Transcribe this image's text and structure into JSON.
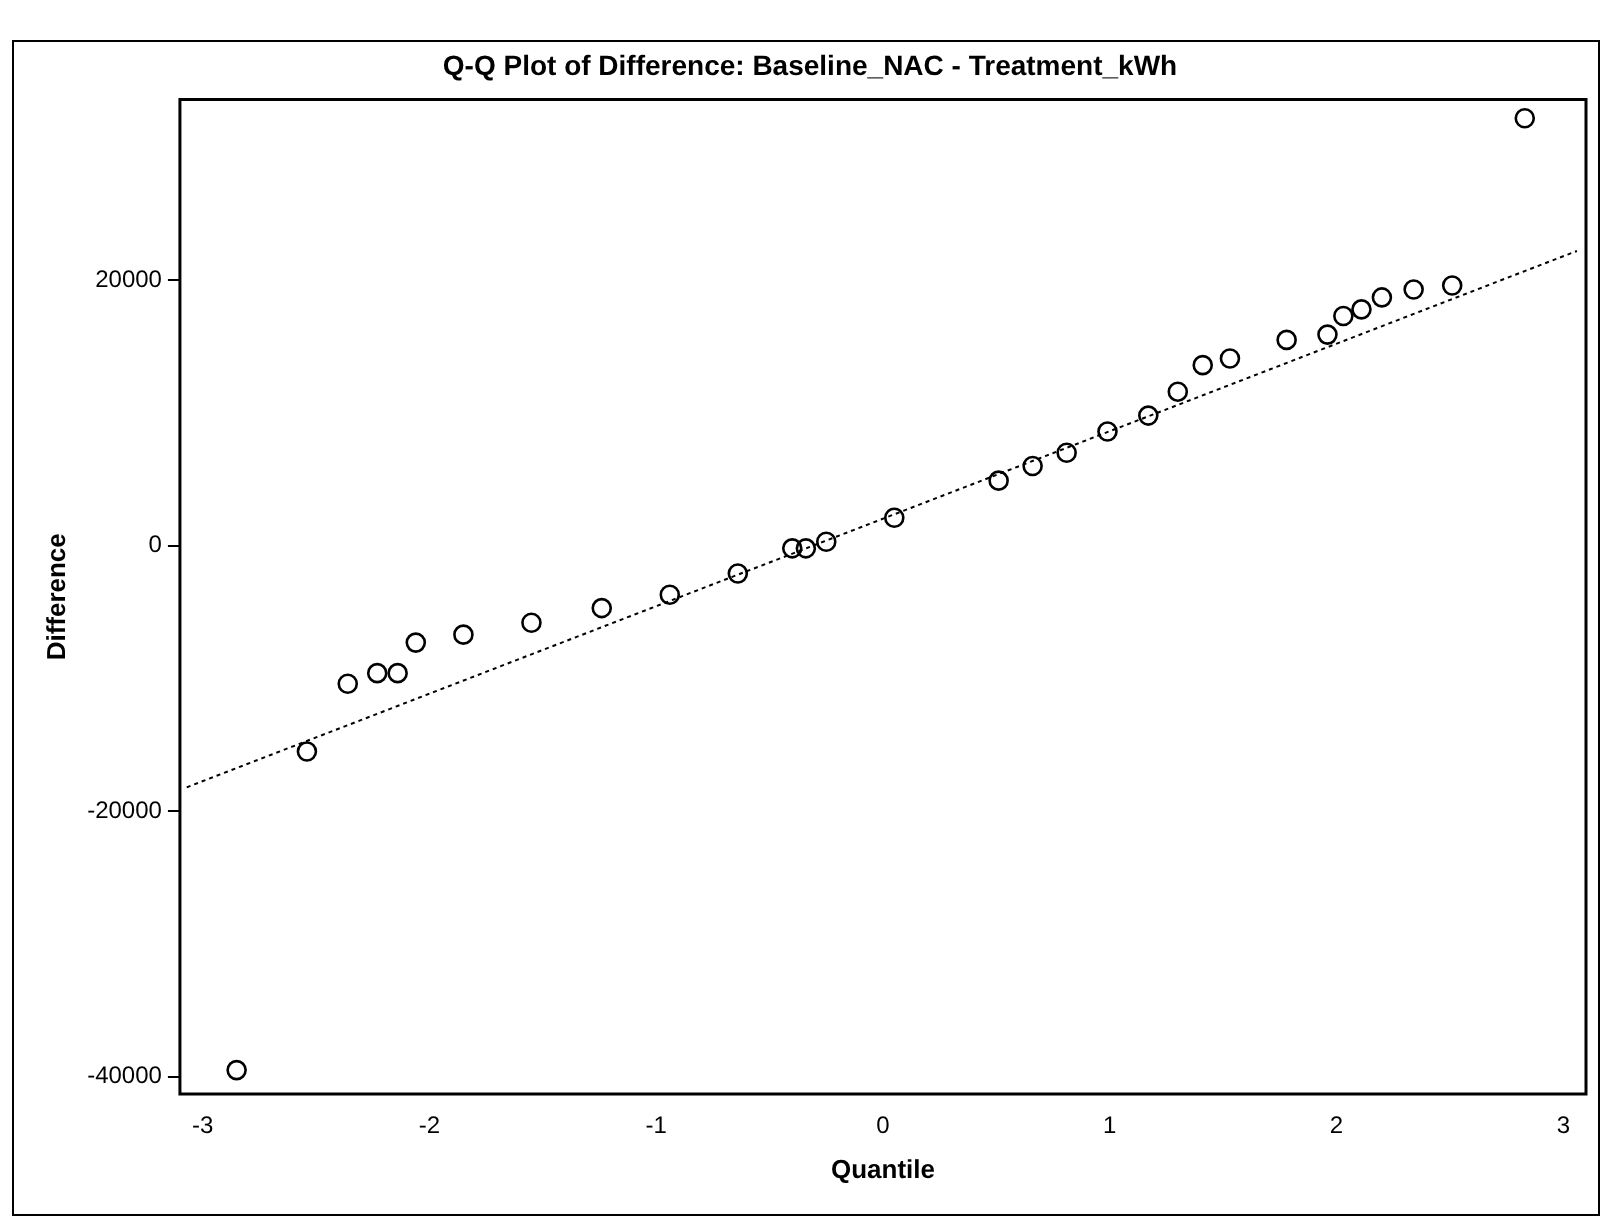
{
  "chart_data": {
    "type": "scatter",
    "title": "Q-Q Plot of Difference: Baseline_NAC - Treatment_kWh",
    "xlabel": "Quantile",
    "ylabel": "Difference",
    "xlim": [
      -3.1,
      3.1
    ],
    "xticks": [
      -3,
      -2,
      -1,
      0,
      1,
      2,
      3
    ],
    "ylim": [
      -41300,
      33600
    ],
    "yticks": [
      -40000,
      -20000,
      0,
      20000
    ],
    "grid": false,
    "legend": false,
    "series": [
      {
        "type": "scatter",
        "color": "#000000",
        "marker": "circle",
        "x": [
          -2.85,
          -2.54,
          -2.36,
          -2.23,
          -2.14,
          -2.06,
          -1.85,
          -1.55,
          -1.24,
          -0.94,
          -0.64,
          -0.4,
          -0.34,
          -0.25,
          0.05,
          0.51,
          0.66,
          0.81,
          0.99,
          1.17,
          1.3,
          1.41,
          1.53,
          1.78,
          1.96,
          2.03,
          2.11,
          2.2,
          2.34,
          2.51,
          2.83
        ],
        "values": [
          -39500,
          -15500,
          -10400,
          -9600,
          -9600,
          -7300,
          -6700,
          -5800,
          -4700,
          -3700,
          -2100,
          -200,
          -200,
          300,
          2100,
          4900,
          6000,
          7000,
          8600,
          9800,
          11600,
          13600,
          14100,
          15500,
          15900,
          17300,
          17800,
          18700,
          19300,
          19600,
          32200
        ]
      },
      {
        "type": "line",
        "color": "#000000",
        "marker": "none",
        "line_style": "dotted",
        "x": [
          -3.07,
          3.06
        ],
        "values": [
          -18200,
          22200
        ]
      }
    ]
  }
}
